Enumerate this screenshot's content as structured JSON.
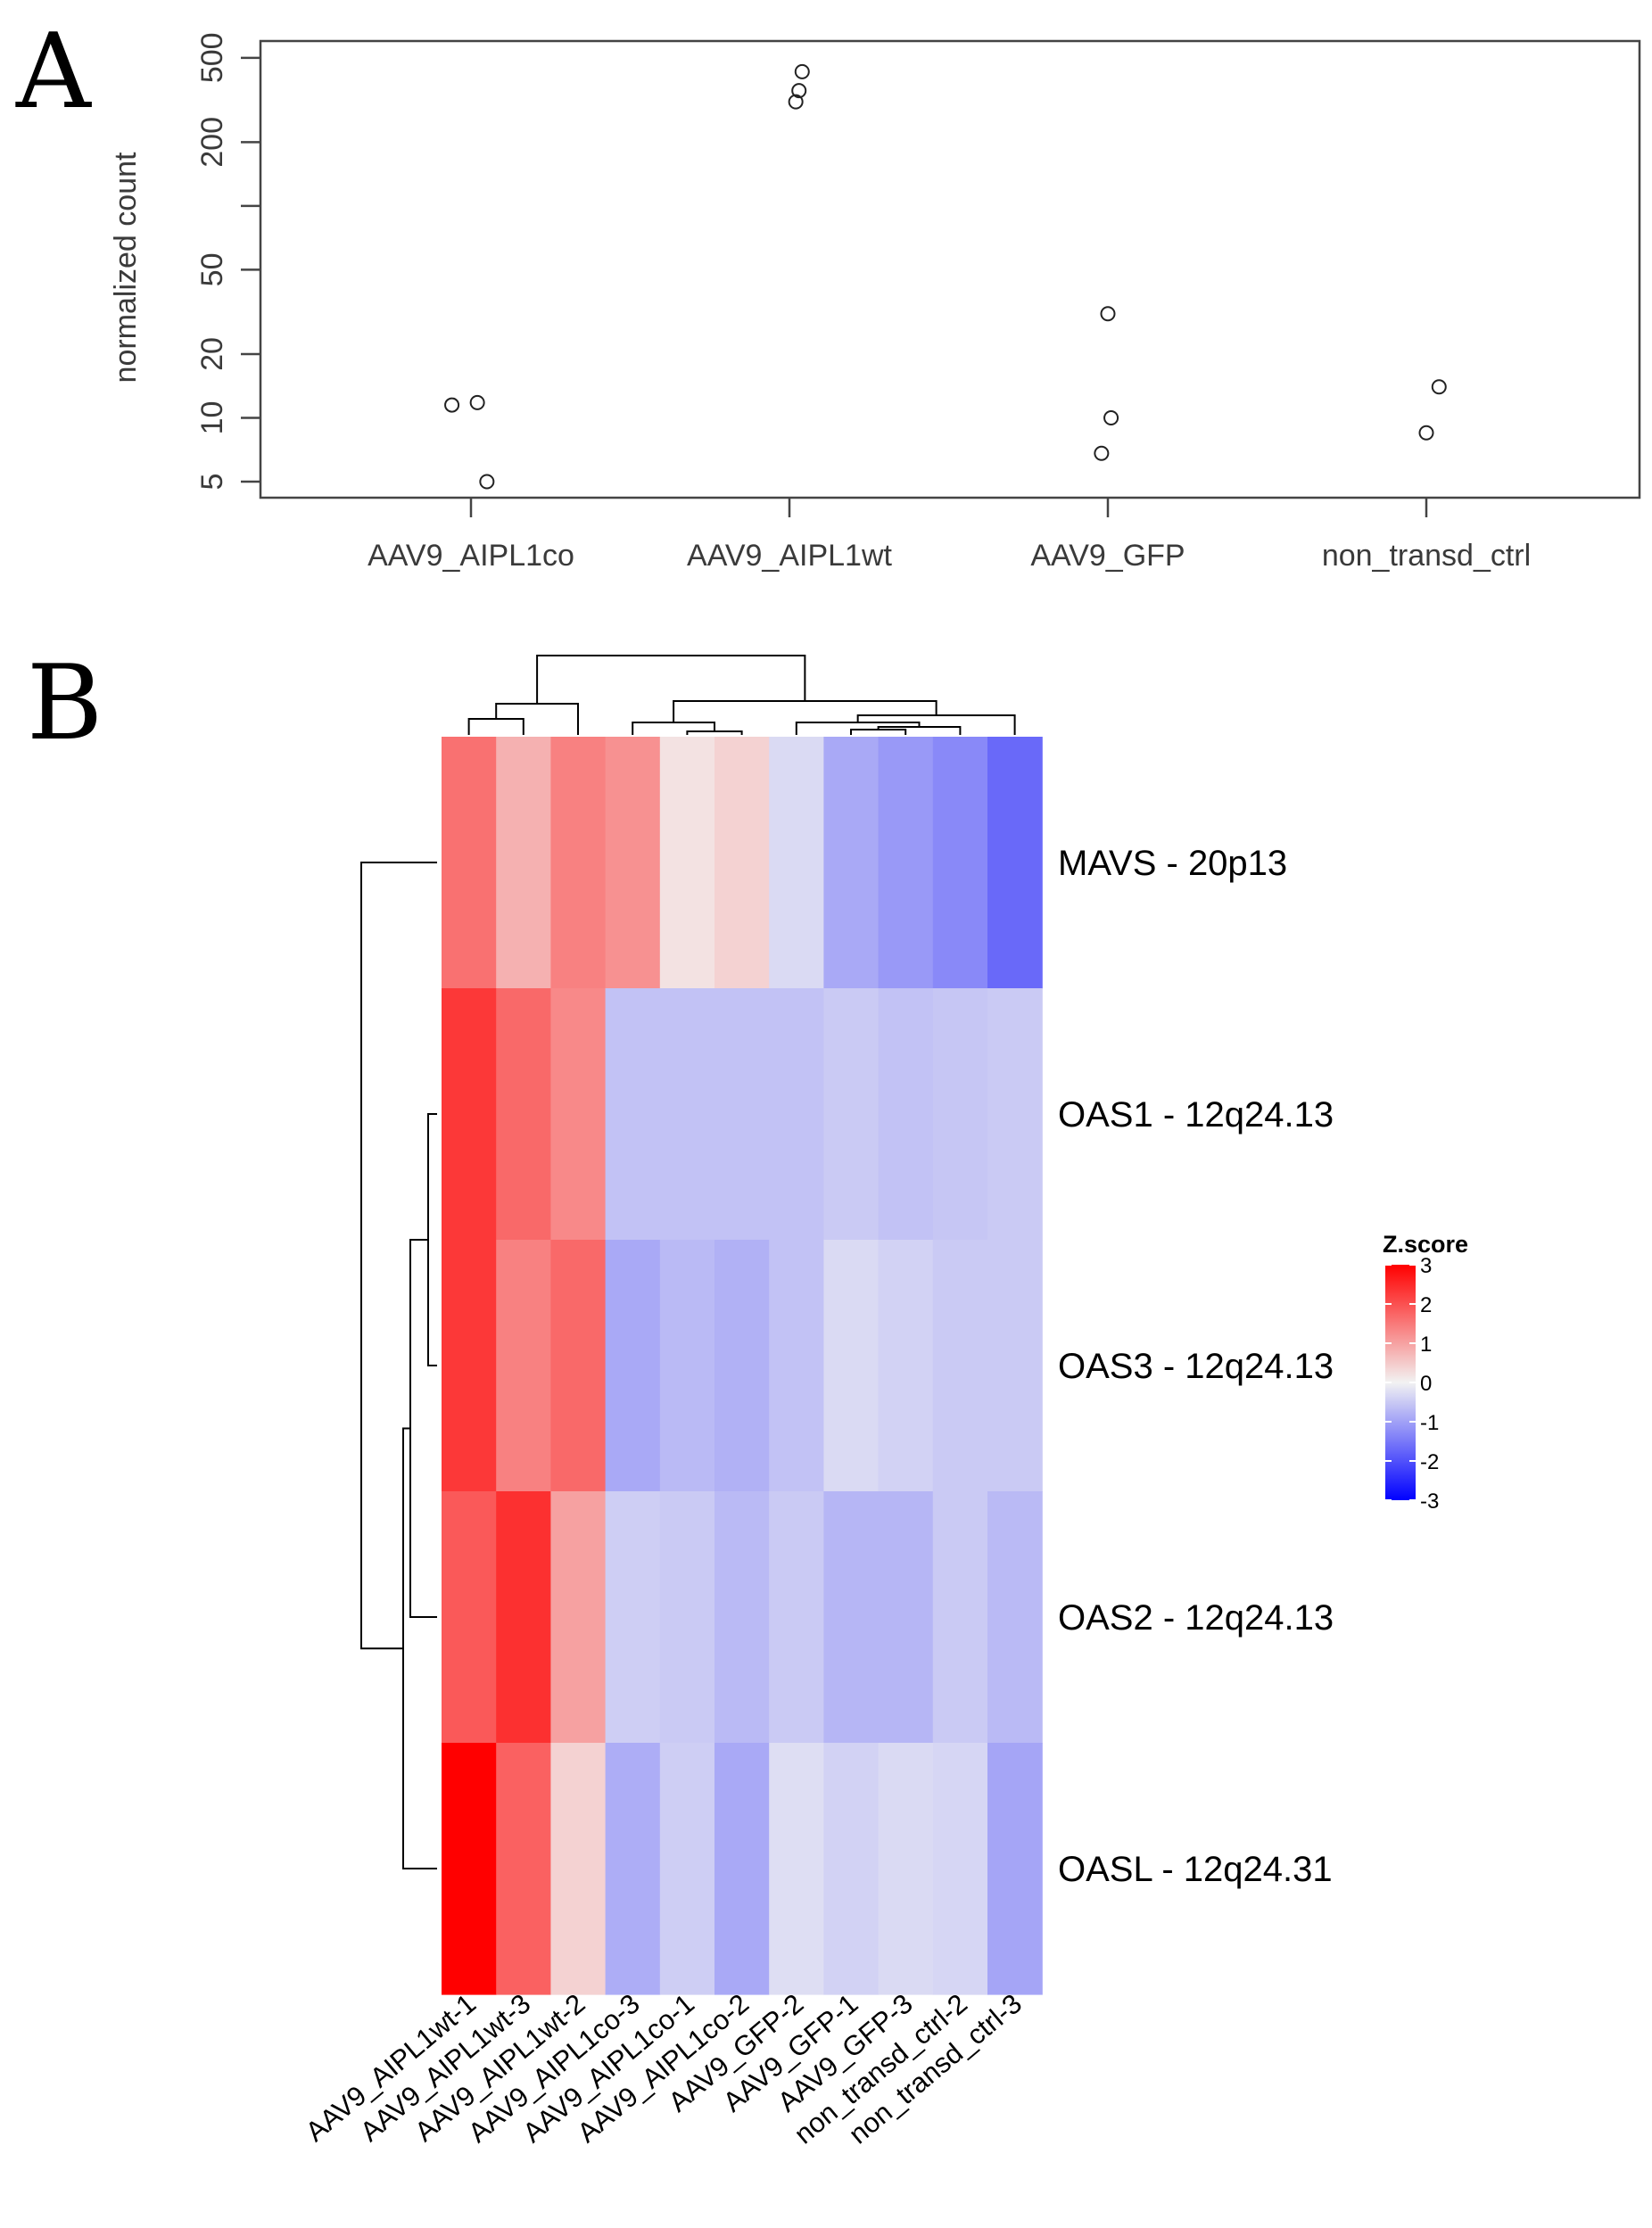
{
  "chart_data": [
    {
      "panel": "A",
      "type": "scatter",
      "title": "",
      "xlabel": "",
      "ylabel": "normalized count",
      "yscale": "log",
      "ylim": [
        4.2,
        600
      ],
      "yticks": [
        "5",
        "10",
        "20",
        "50",
        "100",
        "200",
        "500"
      ],
      "categories": [
        "AAV9_AIPL1co",
        "AAV9_AIPL1wt",
        "AAV9_GFP",
        "non_transd_ctrl"
      ],
      "points": [
        {
          "category": "AAV9_AIPL1co",
          "offset": -0.06,
          "value": 11.5
        },
        {
          "category": "AAV9_AIPL1co",
          "offset": 0.02,
          "value": 11.8
        },
        {
          "category": "AAV9_AIPL1co",
          "offset": 0.05,
          "value": 5.0
        },
        {
          "category": "AAV9_AIPL1wt",
          "offset": 0.04,
          "value": 430
        },
        {
          "category": "AAV9_AIPL1wt",
          "offset": 0.03,
          "value": 350
        },
        {
          "category": "AAV9_AIPL1wt",
          "offset": 0.02,
          "value": 310
        },
        {
          "category": "AAV9_GFP",
          "offset": 0.0,
          "value": 31
        },
        {
          "category": "AAV9_GFP",
          "offset": 0.01,
          "value": 10.0
        },
        {
          "category": "AAV9_GFP",
          "offset": -0.02,
          "value": 6.8
        },
        {
          "category": "non_transd_ctrl",
          "offset": 0.04,
          "value": 14.0
        },
        {
          "category": "non_transd_ctrl",
          "offset": 0.0,
          "value": 8.5
        }
      ]
    },
    {
      "panel": "B",
      "type": "heatmap",
      "legend_title": "Z.score",
      "legend_ticks": [
        "3",
        "2",
        "1",
        "0",
        "-1",
        "-2",
        "-3"
      ],
      "colorscale": {
        "min": -3,
        "max": 3,
        "low": "#0000ff",
        "mid": "#f2f2f2",
        "high": "#ff0000"
      },
      "rows": [
        "MAVS - 20p13",
        "OAS1 - 12q24.13",
        "OAS3 - 12q24.13",
        "OAS2 - 12q24.13",
        "OASL - 12q24.31"
      ],
      "columns": [
        "AAV9_AIPL1wt-1",
        "AAV9_AIPL1wt-3",
        "AAV9_AIPL1wt-2",
        "AAV9_AIPL1co-3",
        "AAV9_AIPL1co-1",
        "AAV9_AIPL1co-2",
        "AAV9_GFP-2",
        "AAV9_GFP-1",
        "AAV9_GFP-3",
        "non_transd_ctrl-2",
        "non_transd_ctrl-3"
      ],
      "values": [
        [
          1.6,
          0.8,
          1.4,
          1.2,
          0.2,
          0.4,
          -0.3,
          -0.9,
          -1.1,
          -1.3,
          -1.7
        ],
        [
          2.3,
          1.7,
          1.3,
          -0.6,
          -0.6,
          -0.6,
          -0.6,
          -0.5,
          -0.6,
          -0.55,
          -0.5
        ],
        [
          2.3,
          1.4,
          1.7,
          -0.9,
          -0.7,
          -0.8,
          -0.6,
          -0.3,
          -0.4,
          -0.5,
          -0.5
        ],
        [
          1.9,
          2.4,
          1.0,
          -0.45,
          -0.5,
          -0.7,
          -0.5,
          -0.75,
          -0.75,
          -0.5,
          -0.7
        ],
        [
          3.0,
          1.8,
          0.4,
          -0.85,
          -0.45,
          -0.9,
          -0.25,
          -0.4,
          -0.3,
          -0.35,
          -0.95
        ]
      ]
    }
  ],
  "panels": {
    "a_label": "A",
    "b_label": "B"
  }
}
